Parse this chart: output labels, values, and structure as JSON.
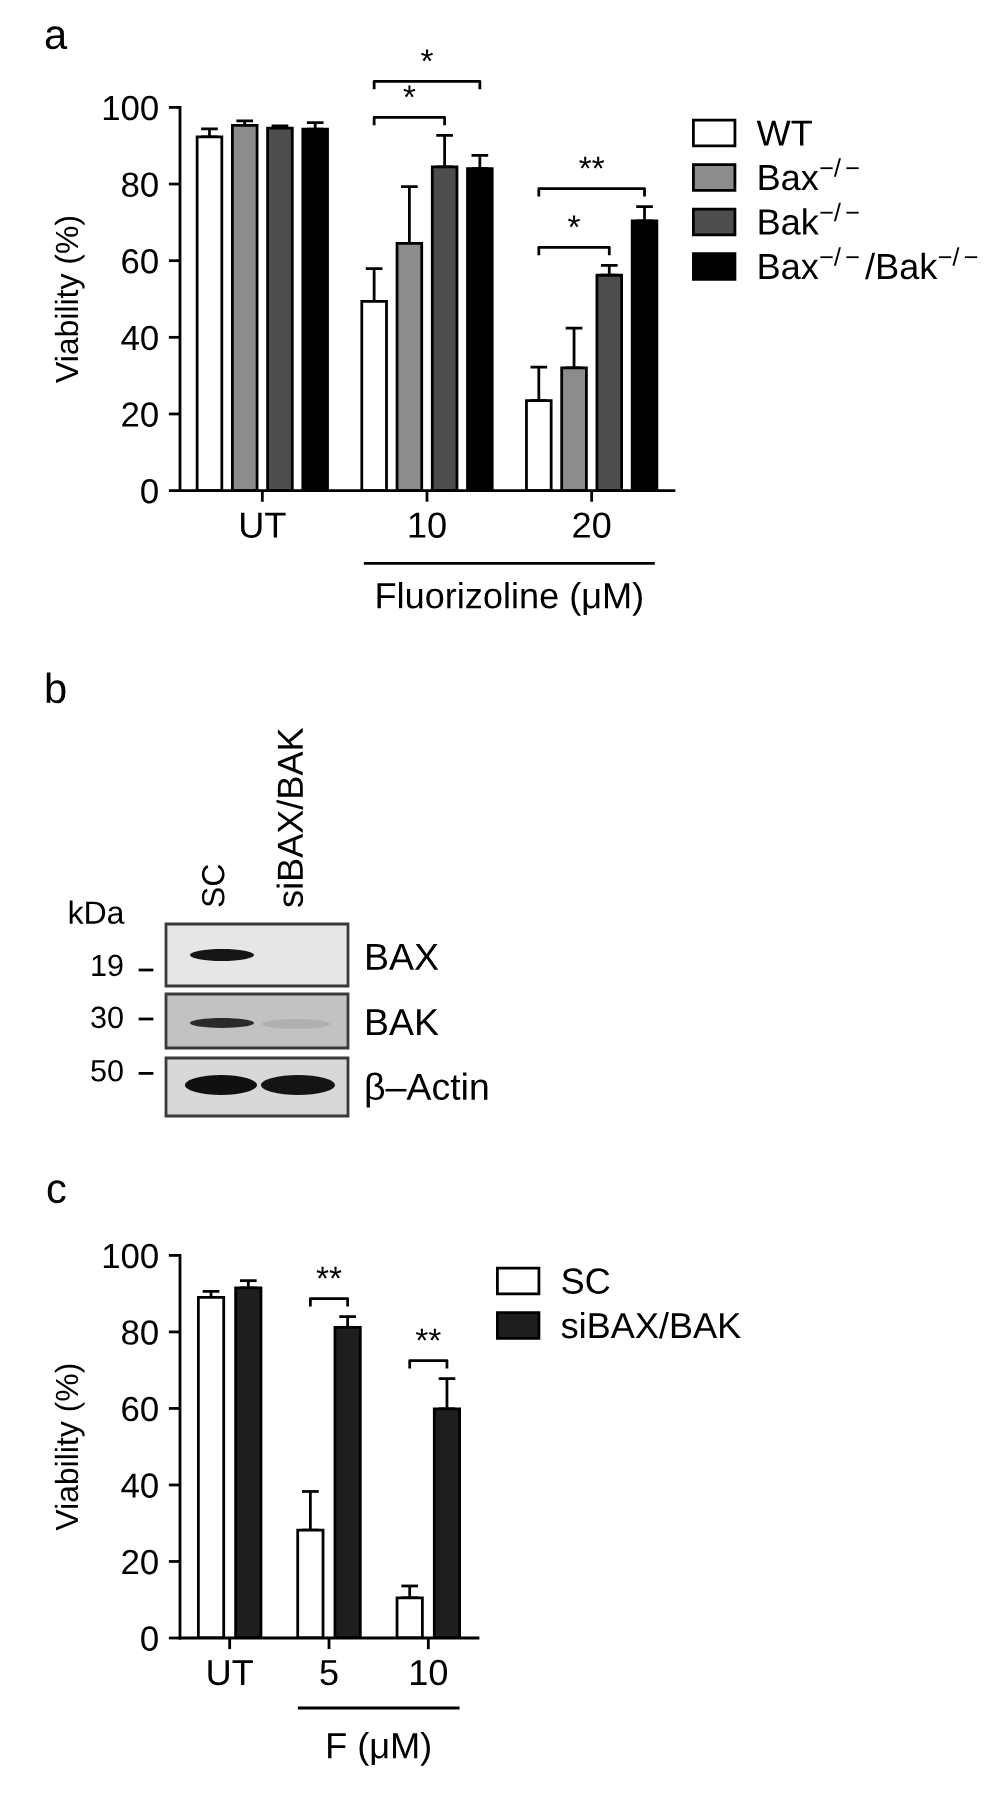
{
  "chart_data": [
    {
      "type": "bar",
      "title": "a",
      "ylabel": "Viability (%)",
      "xlabel": "Fluorizoline (μM)",
      "categories": [
        "UT",
        "10",
        "20"
      ],
      "series": [
        {
          "name": "WT",
          "color": "#ffffff",
          "values": [
            92.3,
            49.4,
            23.5
          ],
          "errors": [
            [
              92.3,
              94.4
            ],
            [
              49.4,
              57.9
            ],
            [
              23.5,
              32.2
            ]
          ]
        },
        {
          "name": "Bax$^{−/−}$",
          "color": "#8c8c8c",
          "values": [
            95.3,
            64.5,
            32.0
          ],
          "errors": [
            [
              95.3,
              96.5
            ],
            [
              64.5,
              79.3
            ],
            [
              32.0,
              42.4
            ]
          ]
        },
        {
          "name": "Bak$^{−/−}$",
          "color": "#4d4d4d",
          "values": [
            94.6,
            84.5,
            56.2
          ],
          "errors": [
            [
              94.6,
              95.2
            ],
            [
              84.5,
              92.7
            ],
            [
              56.2,
              58.8
            ]
          ]
        },
        {
          "name": "Bax$^{−/−}$/Bak$^{−/−}$",
          "color": "#000000",
          "values": [
            94.3,
            84.0,
            70.4
          ],
          "errors": [
            [
              94.3,
              96.0
            ],
            [
              84.0,
              87.5
            ],
            [
              70.4,
              74.1
            ]
          ]
        }
      ],
      "ylim": [
        0,
        100
      ],
      "yticks": [
        0,
        20,
        40,
        60,
        80,
        100
      ],
      "legend": "top right",
      "annotations": [
        "*",
        "*",
        "**",
        "*"
      ]
    },
    {
      "type": "other",
      "title": "b",
      "annotations": [
        "kDa",
        "19",
        "30",
        "50",
        "SC",
        "siBAX/BAK",
        "BAX",
        "BAK",
        "β–Actin"
      ]
    },
    {
      "type": "bar",
      "title": "c",
      "ylabel": "Viability (%)",
      "xlabel": "F (μM)",
      "categories": [
        "UT",
        "5",
        "10"
      ],
      "series": [
        {
          "name": "SC",
          "color": "#ffffff",
          "values": [
            89.0,
            28.2,
            10.5
          ],
          "errors": [
            [
              89.0,
              90.6
            ],
            [
              28.2,
              38.3
            ],
            [
              10.5,
              13.6
            ]
          ]
        },
        {
          "name": "siBAX/BAK",
          "color": "#1e1e1e",
          "values": [
            91.5,
            81.2,
            59.9
          ],
          "errors": [
            [
              91.5,
              93.4
            ],
            [
              81.2,
              84.0
            ],
            [
              59.9,
              67.8
            ]
          ]
        }
      ],
      "ylim": [
        0,
        100
      ],
      "yticks": [
        0,
        20,
        40,
        60,
        80,
        100
      ],
      "legend": "top right",
      "annotations": [
        "**",
        "**"
      ]
    }
  ]
}
